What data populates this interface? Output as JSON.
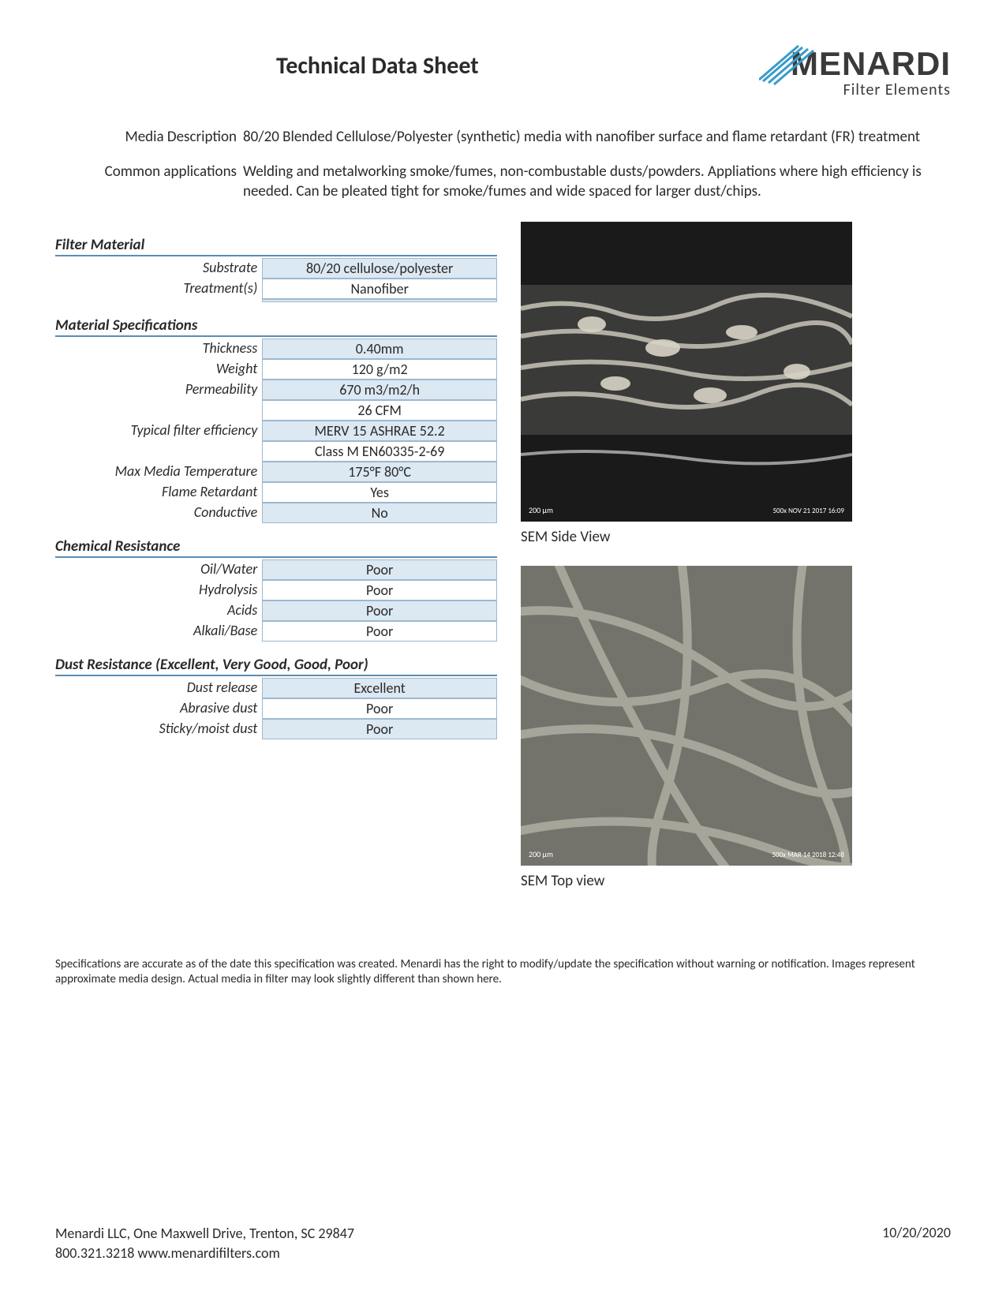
{
  "header": {
    "title": "Technical Data Sheet",
    "logo_main": "MENARDI",
    "logo_sub": "Filter Elements"
  },
  "descriptions": [
    {
      "label": "Media Description",
      "value": "80/20 Blended Cellulose/Polyester (synthetic) media with nanofiber surface and flame retardant (FR) treatment"
    },
    {
      "label": "Common applications",
      "value": "Welding and metalworking smoke/fumes, non-combustable dusts/powders.  Appliations where high efficiency is needed.  Can be pleated tight for smoke/fumes and wide spaced for larger dust/chips."
    }
  ],
  "sections": {
    "filter_material": {
      "head": "Filter Material",
      "rows": [
        {
          "label": "Substrate",
          "value": "80/20 cellulose/polyester",
          "shade": true
        },
        {
          "label": "Treatment(s)",
          "value": "Nanofiber",
          "shade": false
        },
        {
          "label": "",
          "value": "",
          "shade": true
        }
      ]
    },
    "material_specs": {
      "head": "Material Specifications",
      "rows": [
        {
          "label": "Thickness",
          "value": "0.40mm",
          "shade": true
        },
        {
          "label": "Weight",
          "value": "120 g/m2",
          "shade": false
        },
        {
          "label": "Permeability",
          "value": "670 m3/m2/h",
          "shade": true
        },
        {
          "label": "",
          "value": "26 CFM",
          "shade": false
        },
        {
          "label": "Typical filter efficiency",
          "value": "MERV 15  ASHRAE 52.2",
          "shade": true
        },
        {
          "label": "",
          "value": "Class M  EN60335-2-69",
          "shade": false
        },
        {
          "label": "Max Media Temperature",
          "value": "175°F  80°C",
          "shade": true
        },
        {
          "label": "Flame Retardant",
          "value": "Yes",
          "shade": false
        },
        {
          "label": "Conductive",
          "value": "No",
          "shade": true
        }
      ]
    },
    "chemical": {
      "head": "Chemical Resistance",
      "rows": [
        {
          "label": "Oil/Water",
          "value": "Poor",
          "shade": true
        },
        {
          "label": "Hydrolysis",
          "value": "Poor",
          "shade": false
        },
        {
          "label": "Acids",
          "value": "Poor",
          "shade": true
        },
        {
          "label": "Alkali/Base",
          "value": "Poor",
          "shade": false
        }
      ]
    },
    "dust": {
      "head": "Dust Resistance (Excellent, Very Good, Good, Poor)",
      "rows": [
        {
          "label": "Dust release",
          "value": "Excellent",
          "shade": true
        },
        {
          "label": "Abrasive dust",
          "value": "Poor",
          "shade": false
        },
        {
          "label": "Sticky/moist dust",
          "value": "Poor",
          "shade": true
        }
      ]
    }
  },
  "images": {
    "side": {
      "caption": "SEM Side View",
      "scale": "200 µm",
      "info": "500x    NOV 21 2017 16:09"
    },
    "top": {
      "caption": "SEM Top view",
      "scale": "200 µm",
      "info": "500x    MAR 14 2018 12:48"
    }
  },
  "disclaimer": "Specifications are accurate as of the date this specification was created.  Menardi has the right to modify/update the specification without warning or notification.  Images represent approximate media design.  Actual media in filter may look slightly different than shown here.",
  "footer": {
    "line1": "Menardi LLC, One Maxwell Drive, Trenton, SC 29847",
    "line2": "800.321.3218     www.menardifilters.com",
    "date": "10/20/2020"
  },
  "colors": {
    "rule": "#5b8db5",
    "cell_border": "#9db8cf",
    "shade": "#dce8f2",
    "logo_stroke": "#3a9bc9"
  }
}
